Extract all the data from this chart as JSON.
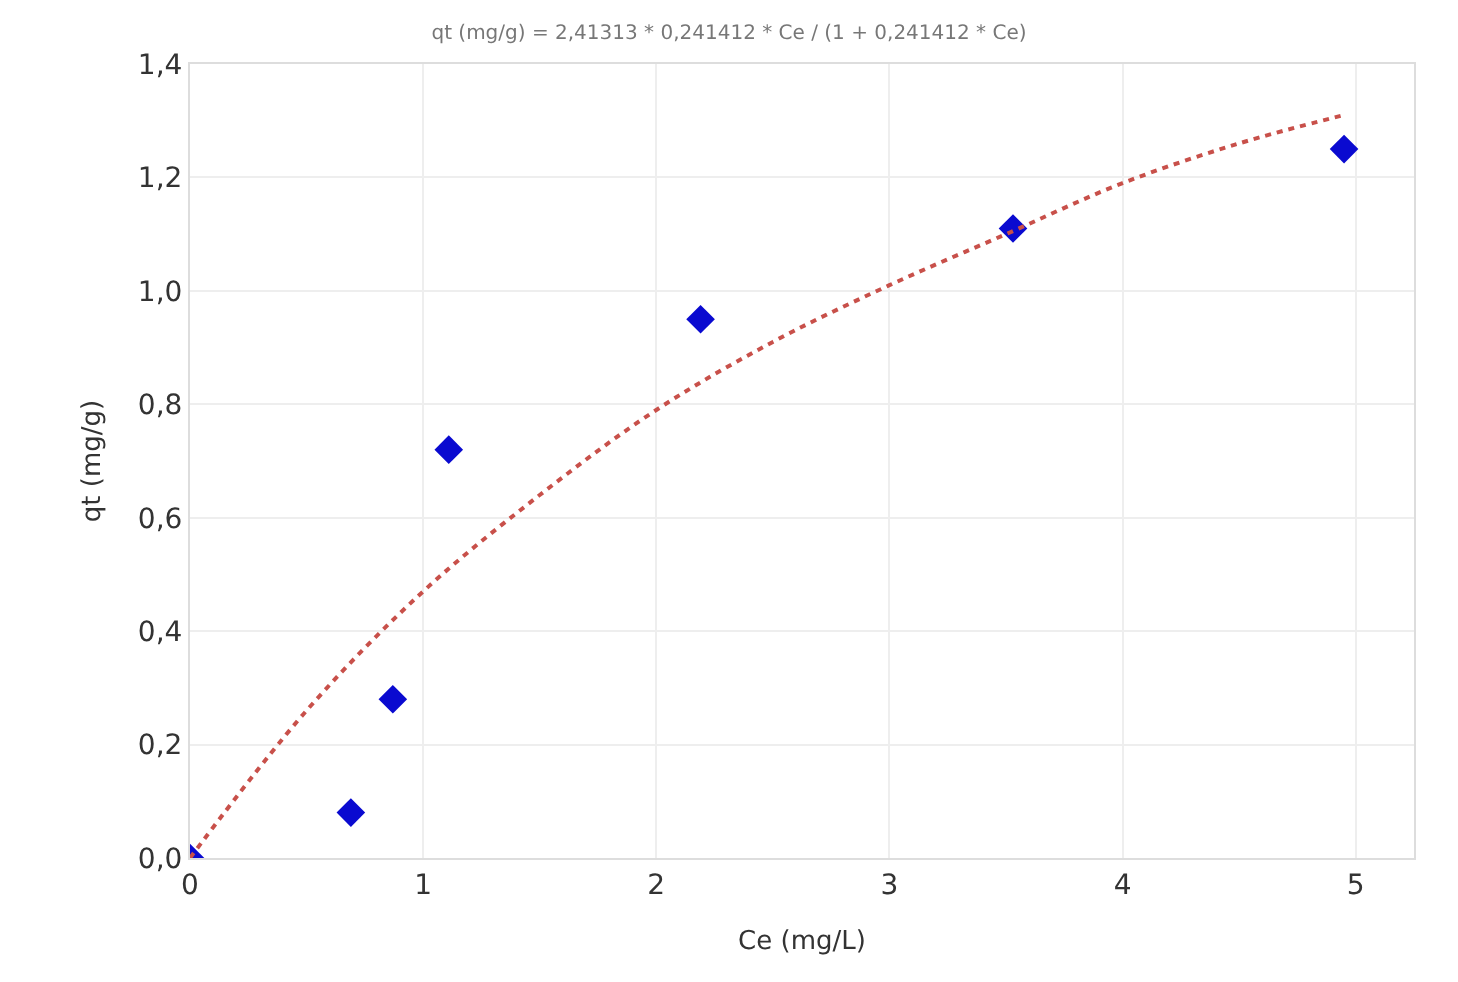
{
  "chart_data": {
    "type": "scatter",
    "title": "qt (mg/g) = 2,41313 * 0,241412 * Ce / (1 + 0,241412 * Ce)",
    "xlabel": "Ce (mg/L)",
    "ylabel": "qt (mg/g)",
    "series": [
      {
        "color": "#0a0ad0",
        "marker": "diamond",
        "x": [
          0,
          0.69,
          0.87,
          1.11,
          2.19,
          3.53,
          4.95
        ],
        "values": [
          0,
          0.08,
          0.28,
          0.72,
          0.95,
          1.11,
          1.25
        ]
      },
      {
        "type": "line",
        "color": "#c8504a",
        "line_style": "dotted",
        "marker": "none",
        "x": [
          0,
          0.5,
          1,
          1.5,
          2,
          2.5,
          3,
          3.5,
          4,
          4.5,
          4.95
        ],
        "values": [
          0,
          0.26,
          0.47,
          0.64,
          0.79,
          0.91,
          1.01,
          1.1,
          1.19,
          1.26,
          1.31
        ]
      }
    ],
    "xlim": [
      0,
      5.25
    ],
    "xticks": [
      0,
      1,
      2,
      3,
      4,
      5
    ],
    "ylim": [
      0,
      1.4
    ],
    "yticks": [
      {
        "value": 0,
        "label": "0,0"
      },
      {
        "value": 0.2,
        "label": "0,2"
      },
      {
        "value": 0.4,
        "label": "0,4"
      },
      {
        "value": 0.6,
        "label": "0,6"
      },
      {
        "value": 0.8,
        "label": "0,8"
      },
      {
        "value": 1.0,
        "label": "1,0"
      },
      {
        "value": 1.2,
        "label": "1,2"
      },
      {
        "value": 1.4,
        "label": "1,4"
      }
    ],
    "grid": true
  }
}
